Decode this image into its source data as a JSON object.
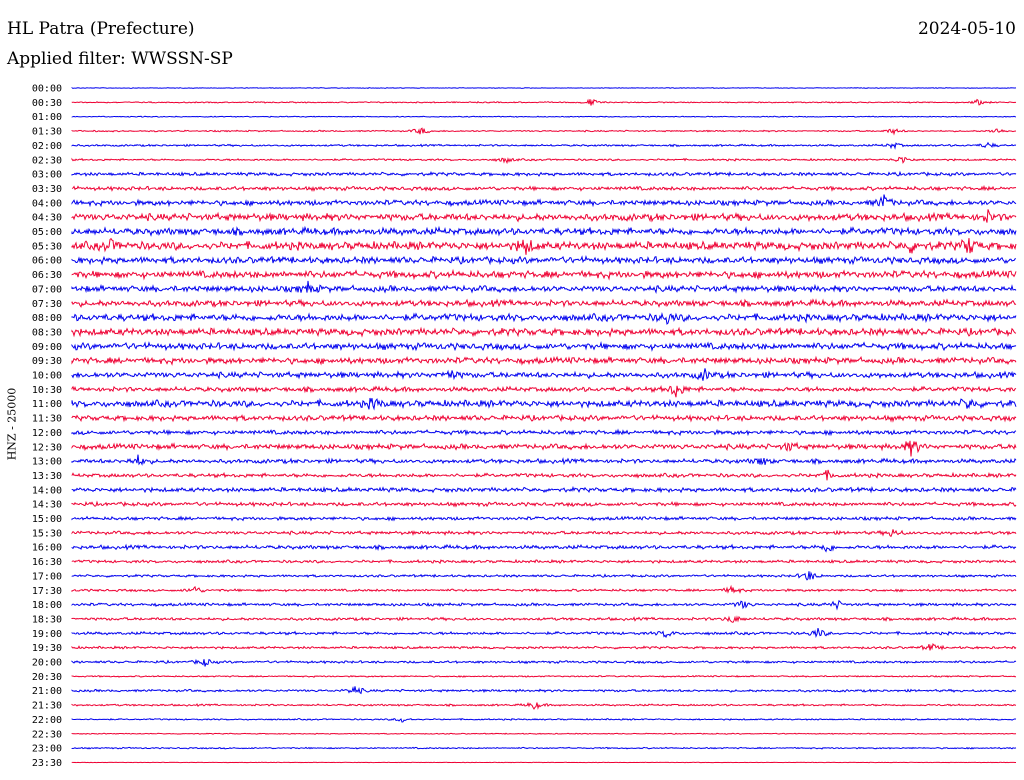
{
  "header": {
    "station": "HL Patra (Prefecture)",
    "date": "2024-05-10",
    "filter_label": "Applied filter: WWSSN-SP"
  },
  "chart_data": {
    "type": "line",
    "title": "",
    "ylabel": "HNZ - 25000",
    "xlabel": "",
    "grid": false,
    "colors": [
      "#0000ee",
      "#ee0033"
    ],
    "rows": [
      "00:00",
      "00:30",
      "01:00",
      "01:30",
      "02:00",
      "02:30",
      "03:00",
      "03:30",
      "04:00",
      "04:30",
      "05:00",
      "05:30",
      "06:00",
      "06:30",
      "07:00",
      "07:30",
      "08:00",
      "08:30",
      "09:00",
      "09:30",
      "10:00",
      "10:30",
      "11:00",
      "11:30",
      "12:00",
      "12:30",
      "13:00",
      "13:30",
      "14:00",
      "14:30",
      "15:00",
      "15:30",
      "16:00",
      "16:30",
      "17:00",
      "17:30",
      "18:00",
      "18:30",
      "19:00",
      "19:30",
      "20:00",
      "20:30",
      "21:00",
      "21:30",
      "22:00",
      "22:30",
      "23:00",
      "23:30"
    ],
    "noise_level": [
      0.3,
      0.5,
      0.4,
      0.6,
      0.8,
      0.8,
      1.4,
      1.6,
      2.2,
      3.0,
      3.0,
      3.4,
      2.8,
      3.0,
      2.6,
      2.6,
      3.0,
      3.0,
      2.8,
      2.6,
      2.4,
      2.0,
      2.8,
      2.2,
      1.8,
      2.2,
      1.8,
      1.6,
      1.8,
      1.6,
      1.4,
      1.4,
      1.6,
      1.2,
      1.0,
      1.0,
      1.2,
      1.2,
      1.2,
      1.0,
      1.0,
      0.6,
      1.0,
      0.8,
      0.6,
      0.4,
      0.6,
      0.2
    ],
    "events": [
      {
        "row": 1,
        "at": 0.55,
        "amp": 4
      },
      {
        "row": 1,
        "at": 0.96,
        "amp": 3
      },
      {
        "row": 3,
        "at": 0.37,
        "amp": 4
      },
      {
        "row": 3,
        "at": 0.87,
        "amp": 3
      },
      {
        "row": 3,
        "at": 0.98,
        "amp": 3
      },
      {
        "row": 4,
        "at": 0.87,
        "amp": 3
      },
      {
        "row": 4,
        "at": 0.97,
        "amp": 3
      },
      {
        "row": 5,
        "at": 0.46,
        "amp": 3
      },
      {
        "row": 5,
        "at": 0.88,
        "amp": 4
      },
      {
        "row": 8,
        "at": 0.86,
        "amp": 7
      },
      {
        "row": 9,
        "at": 0.97,
        "amp": 5
      },
      {
        "row": 11,
        "at": 0.04,
        "amp": 5
      },
      {
        "row": 11,
        "at": 0.48,
        "amp": 8
      },
      {
        "row": 11,
        "at": 0.89,
        "amp": 5
      },
      {
        "row": 11,
        "at": 0.95,
        "amp": 8
      },
      {
        "row": 14,
        "at": 0.25,
        "amp": 5
      },
      {
        "row": 16,
        "at": 0.63,
        "amp": 5
      },
      {
        "row": 20,
        "at": 0.4,
        "amp": 5
      },
      {
        "row": 20,
        "at": 0.67,
        "amp": 5
      },
      {
        "row": 21,
        "at": 0.64,
        "amp": 8
      },
      {
        "row": 22,
        "at": 0.32,
        "amp": 5
      },
      {
        "row": 22,
        "at": 0.95,
        "amp": 5
      },
      {
        "row": 25,
        "at": 0.89,
        "amp": 9
      },
      {
        "row": 25,
        "at": 0.76,
        "amp": 4
      },
      {
        "row": 26,
        "at": 0.07,
        "amp": 5
      },
      {
        "row": 26,
        "at": 0.73,
        "amp": 4
      },
      {
        "row": 27,
        "at": 0.8,
        "amp": 4
      },
      {
        "row": 31,
        "at": 0.87,
        "amp": 4
      },
      {
        "row": 32,
        "at": 0.8,
        "amp": 5
      },
      {
        "row": 34,
        "at": 0.78,
        "amp": 6
      },
      {
        "row": 35,
        "at": 0.13,
        "amp": 4
      },
      {
        "row": 35,
        "at": 0.7,
        "amp": 4
      },
      {
        "row": 36,
        "at": 0.71,
        "amp": 4
      },
      {
        "row": 36,
        "at": 0.81,
        "amp": 4
      },
      {
        "row": 37,
        "at": 0.7,
        "amp": 4
      },
      {
        "row": 38,
        "at": 0.63,
        "amp": 4
      },
      {
        "row": 38,
        "at": 0.79,
        "amp": 5
      },
      {
        "row": 39,
        "at": 0.91,
        "amp": 4
      },
      {
        "row": 40,
        "at": 0.14,
        "amp": 4
      },
      {
        "row": 42,
        "at": 0.3,
        "amp": 5
      },
      {
        "row": 43,
        "at": 0.49,
        "amp": 4
      },
      {
        "row": 44,
        "at": 0.35,
        "amp": 3
      }
    ]
  }
}
